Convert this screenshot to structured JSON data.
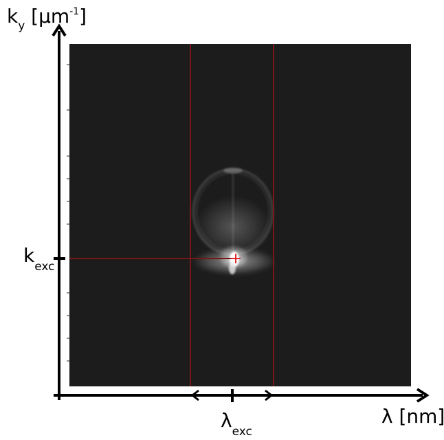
{
  "y_axis": {
    "symbol": "k",
    "subscript": "y",
    "unit_open": " [µm",
    "unit_sup": "-1",
    "unit_close": "]"
  },
  "x_axis": {
    "symbol": "λ",
    "unit": " [nm]"
  },
  "excitation_k": {
    "symbol": "k",
    "subscript": "exc"
  },
  "excitation_lambda": {
    "symbol": "λ",
    "subscript": "exc"
  },
  "colors": {
    "background": "#ffffff",
    "image": "#1c1c1c",
    "marker_line": "#7a1518",
    "marker_cross": "#e0252b",
    "axes": "#000000"
  }
}
